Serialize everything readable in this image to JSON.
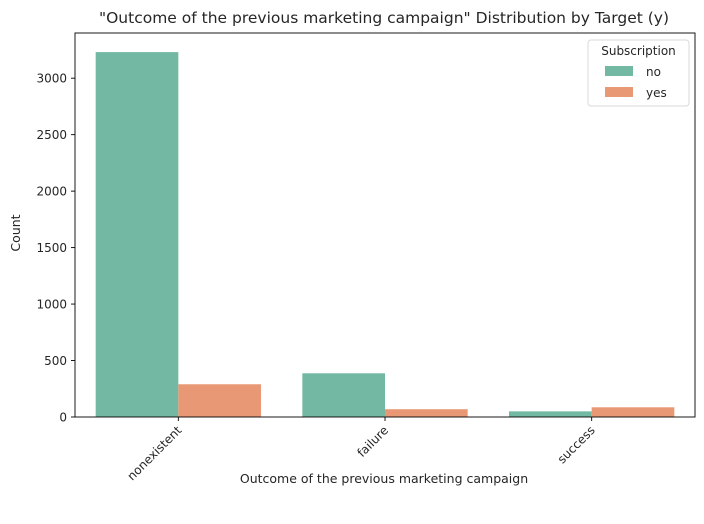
{
  "chart_data": {
    "type": "bar",
    "title": "\"Outcome of the previous marketing campaign\" Distribution by Target (y)",
    "xlabel": "Outcome of the previous marketing campaign",
    "ylabel": "Count",
    "categories": [
      "nonexistent",
      "failure",
      "success"
    ],
    "series": [
      {
        "name": "no",
        "values": [
          3231,
          387,
          50
        ],
        "color": "#73b8a2"
      },
      {
        "name": "yes",
        "values": [
          290,
          69,
          86
        ],
        "color": "#e99875"
      }
    ],
    "ylim": [
      0,
      3400
    ],
    "yticks": [
      0,
      500,
      1000,
      1500,
      2000,
      2500,
      3000
    ],
    "grid": false,
    "legend": {
      "title": "Subscription",
      "placement": "top-right"
    }
  }
}
